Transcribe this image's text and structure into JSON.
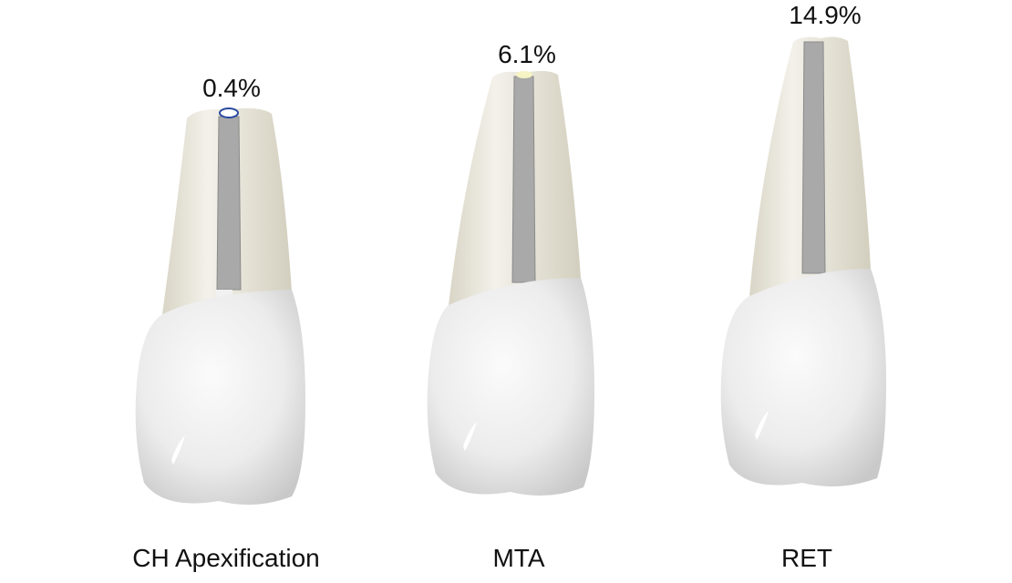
{
  "teeth": [
    {
      "label": "CH Apexification",
      "percent": "0.4%"
    },
    {
      "label": "MTA",
      "percent": "6.1%"
    },
    {
      "label": "RET",
      "percent": "14.9%"
    }
  ]
}
